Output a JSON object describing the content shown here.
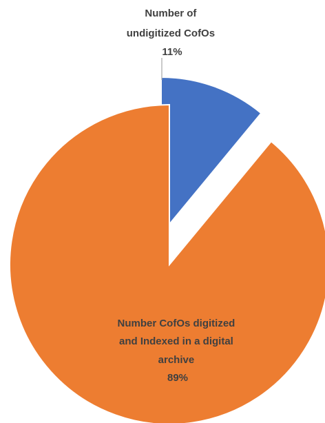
{
  "chart_data": {
    "type": "pie",
    "title": "",
    "start_angle_deg": 0,
    "direction": "clockwise",
    "exploded": true,
    "slices": [
      {
        "label_lines": [
          "Number of",
          "undigitized CofOs"
        ],
        "percent_label": "11%",
        "value": 11,
        "color": "#4472C4"
      },
      {
        "label_lines": [
          "Number CofOs digitized",
          "and Indexed in a digital",
          "archive"
        ],
        "percent_label": "89%",
        "value": 89,
        "color": "#ED7D31"
      }
    ]
  }
}
